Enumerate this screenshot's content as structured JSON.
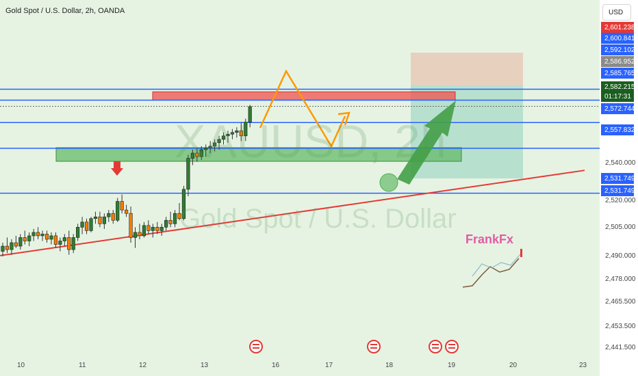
{
  "header": {
    "title": "Gold Spot / U.S. Dollar, 2h, OANDA",
    "currency_button": "USD"
  },
  "watermark": {
    "symbol": "XAUUSD, 2h",
    "name": "Gold Spot / U.S. Dollar"
  },
  "author_logo": "FrankFx",
  "chart_data": {
    "type": "candlestick",
    "symbol": "XAUUSD",
    "interval": "2h",
    "ylim": [
      2441.5,
      2608
    ],
    "x_ticks": [
      "10",
      "11",
      "12",
      "13",
      "16",
      "17",
      "18",
      "19",
      "20",
      "23"
    ],
    "y_ticks": [
      "2,540.000",
      "2,520.000",
      "2,505.000",
      "2,490.000",
      "2,478.000",
      "2,465.500",
      "2,453.500",
      "2,441.500"
    ],
    "price_tags": [
      {
        "label": "2,601.238",
        "color": "#e53935"
      },
      {
        "label": "2,600.841",
        "color": "#2962ff"
      },
      {
        "label": "2,592.102",
        "color": "#2962ff"
      },
      {
        "label": "2,586.952",
        "color": "#8a8a8a"
      },
      {
        "label": "2,585.765",
        "color": "#2962ff"
      },
      {
        "label": "2,582.215",
        "color": "#1b5e20"
      },
      {
        "label": "01:17:31",
        "color": "#1b5e20"
      },
      {
        "label": "2,572.744",
        "color": "#2962ff"
      },
      {
        "label": "2,557.832",
        "color": "#2962ff"
      },
      {
        "label": "2,531.749",
        "color": "#2962ff"
      },
      {
        "label": "2,531.749",
        "color": "#2962ff"
      }
    ],
    "horizontal_levels": [
      2592.102,
      2585.765,
      2572.744,
      2557.832,
      2531.749
    ],
    "resistance_zone": [
      2585.765,
      2590.6
    ],
    "support_zone": [
      2541.5,
      2548.0
    ],
    "trendline": [
      {
        "x": "09",
        "y": 2495.5
      },
      {
        "x": "23",
        "y": 2545.0
      }
    ],
    "candles": [
      {
        "o": 2498,
        "h": 2503,
        "l": 2495,
        "c": 2501
      },
      {
        "o": 2501,
        "h": 2506,
        "l": 2497,
        "c": 2499
      },
      {
        "o": 2499,
        "h": 2505,
        "l": 2496,
        "c": 2503
      },
      {
        "o": 2503,
        "h": 2507,
        "l": 2500,
        "c": 2501
      },
      {
        "o": 2501,
        "h": 2508,
        "l": 2499,
        "c": 2506
      },
      {
        "o": 2506,
        "h": 2510,
        "l": 2502,
        "c": 2504
      },
      {
        "o": 2504,
        "h": 2509,
        "l": 2501,
        "c": 2507
      },
      {
        "o": 2507,
        "h": 2511,
        "l": 2504,
        "c": 2509
      },
      {
        "o": 2509,
        "h": 2512,
        "l": 2505,
        "c": 2507
      },
      {
        "o": 2507,
        "h": 2510,
        "l": 2504,
        "c": 2508
      },
      {
        "o": 2508,
        "h": 2510,
        "l": 2503,
        "c": 2505
      },
      {
        "o": 2505,
        "h": 2509,
        "l": 2502,
        "c": 2507
      },
      {
        "o": 2507,
        "h": 2509,
        "l": 2500,
        "c": 2502
      },
      {
        "o": 2502,
        "h": 2506,
        "l": 2498,
        "c": 2504
      },
      {
        "o": 2504,
        "h": 2508,
        "l": 2501,
        "c": 2506
      },
      {
        "o": 2506,
        "h": 2510,
        "l": 2496,
        "c": 2499
      },
      {
        "o": 2499,
        "h": 2508,
        "l": 2497,
        "c": 2506
      },
      {
        "o": 2506,
        "h": 2514,
        "l": 2504,
        "c": 2512
      },
      {
        "o": 2512,
        "h": 2518,
        "l": 2508,
        "c": 2515
      },
      {
        "o": 2515,
        "h": 2517,
        "l": 2508,
        "c": 2510
      },
      {
        "o": 2510,
        "h": 2518,
        "l": 2509,
        "c": 2517
      },
      {
        "o": 2517,
        "h": 2521,
        "l": 2514,
        "c": 2518
      },
      {
        "o": 2518,
        "h": 2521,
        "l": 2512,
        "c": 2514
      },
      {
        "o": 2514,
        "h": 2520,
        "l": 2511,
        "c": 2518
      },
      {
        "o": 2518,
        "h": 2522,
        "l": 2515,
        "c": 2520
      },
      {
        "o": 2520,
        "h": 2522,
        "l": 2514,
        "c": 2516
      },
      {
        "o": 2516,
        "h": 2529,
        "l": 2515,
        "c": 2527
      },
      {
        "o": 2527,
        "h": 2531,
        "l": 2520,
        "c": 2522
      },
      {
        "o": 2522,
        "h": 2525,
        "l": 2518,
        "c": 2520
      },
      {
        "o": 2520,
        "h": 2524,
        "l": 2503,
        "c": 2506
      },
      {
        "o": 2506,
        "h": 2512,
        "l": 2500,
        "c": 2509
      },
      {
        "o": 2509,
        "h": 2514,
        "l": 2505,
        "c": 2507
      },
      {
        "o": 2507,
        "h": 2515,
        "l": 2506,
        "c": 2513
      },
      {
        "o": 2513,
        "h": 2516,
        "l": 2508,
        "c": 2510
      },
      {
        "o": 2510,
        "h": 2514,
        "l": 2506,
        "c": 2512
      },
      {
        "o": 2512,
        "h": 2515,
        "l": 2508,
        "c": 2510
      },
      {
        "o": 2510,
        "h": 2514,
        "l": 2507,
        "c": 2512
      },
      {
        "o": 2512,
        "h": 2518,
        "l": 2510,
        "c": 2516
      },
      {
        "o": 2516,
        "h": 2521,
        "l": 2512,
        "c": 2514
      },
      {
        "o": 2514,
        "h": 2522,
        "l": 2512,
        "c": 2520
      },
      {
        "o": 2520,
        "h": 2526,
        "l": 2516,
        "c": 2517
      },
      {
        "o": 2517,
        "h": 2536,
        "l": 2516,
        "c": 2534
      },
      {
        "o": 2534,
        "h": 2554,
        "l": 2530,
        "c": 2552
      },
      {
        "o": 2552,
        "h": 2557,
        "l": 2548,
        "c": 2555
      },
      {
        "o": 2555,
        "h": 2558,
        "l": 2550,
        "c": 2553
      },
      {
        "o": 2553,
        "h": 2559,
        "l": 2551,
        "c": 2557
      },
      {
        "o": 2557,
        "h": 2560,
        "l": 2553,
        "c": 2558
      },
      {
        "o": 2558,
        "h": 2562,
        "l": 2555,
        "c": 2559
      },
      {
        "o": 2559,
        "h": 2563,
        "l": 2556,
        "c": 2561
      },
      {
        "o": 2561,
        "h": 2565,
        "l": 2557,
        "c": 2563
      },
      {
        "o": 2563,
        "h": 2567,
        "l": 2560,
        "c": 2565
      },
      {
        "o": 2565,
        "h": 2568,
        "l": 2561,
        "c": 2566
      },
      {
        "o": 2566,
        "h": 2569,
        "l": 2563,
        "c": 2567
      },
      {
        "o": 2567,
        "h": 2570,
        "l": 2564,
        "c": 2568
      },
      {
        "o": 2568,
        "h": 2573,
        "l": 2562,
        "c": 2565
      },
      {
        "o": 2565,
        "h": 2575,
        "l": 2562,
        "c": 2573
      },
      {
        "o": 2573,
        "h": 2583,
        "l": 2570,
        "c": 2582
      }
    ]
  },
  "colors": {
    "up": "#26a69a",
    "down": "#ef5350",
    "level": "#2962ff",
    "trend": "#e53935",
    "projection": "#ff9800",
    "arrow": "#43a047",
    "resistance": "#ef5350",
    "support": "#66bb6a"
  }
}
